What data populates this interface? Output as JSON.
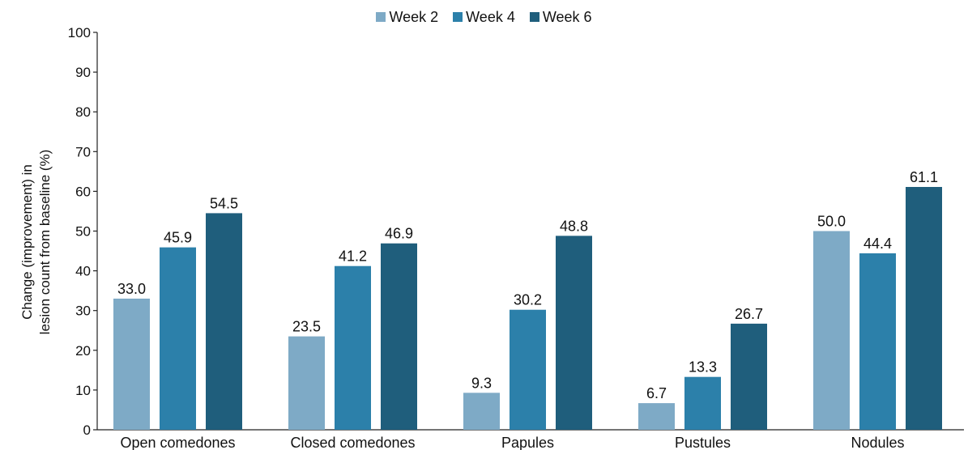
{
  "chart_data": {
    "type": "bar",
    "categories": [
      "Open comedones",
      "Closed comedones",
      "Papules",
      "Pustules",
      "Nodules"
    ],
    "series": [
      {
        "name": "Week 2",
        "color": "#7eaac6",
        "values": [
          33.0,
          23.5,
          9.3,
          6.7,
          50.0
        ],
        "labels": [
          "33.0",
          "23.5",
          "9.3",
          "6.7",
          "50.0"
        ]
      },
      {
        "name": "Week 4",
        "color": "#2c80aa",
        "values": [
          45.9,
          41.2,
          30.2,
          13.3,
          44.4
        ],
        "labels": [
          "45.9",
          "41.2",
          "30.2",
          "13.3",
          "44.4"
        ]
      },
      {
        "name": "Week 6",
        "color": "#1f5e7c",
        "values": [
          54.5,
          46.9,
          48.8,
          26.7,
          61.1
        ],
        "labels": [
          "54.5",
          "46.9",
          "48.8",
          "26.7",
          "61.1"
        ]
      }
    ],
    "ylabel_lines": [
      "Change (improvement) in",
      "lesion count from baseline (%)"
    ],
    "yticks": [
      "0",
      "10",
      "20",
      "30",
      "40",
      "50",
      "60",
      "70",
      "80",
      "90",
      "100"
    ],
    "ylim": [
      0,
      100
    ],
    "legend_position": "top-center",
    "grid": false
  }
}
